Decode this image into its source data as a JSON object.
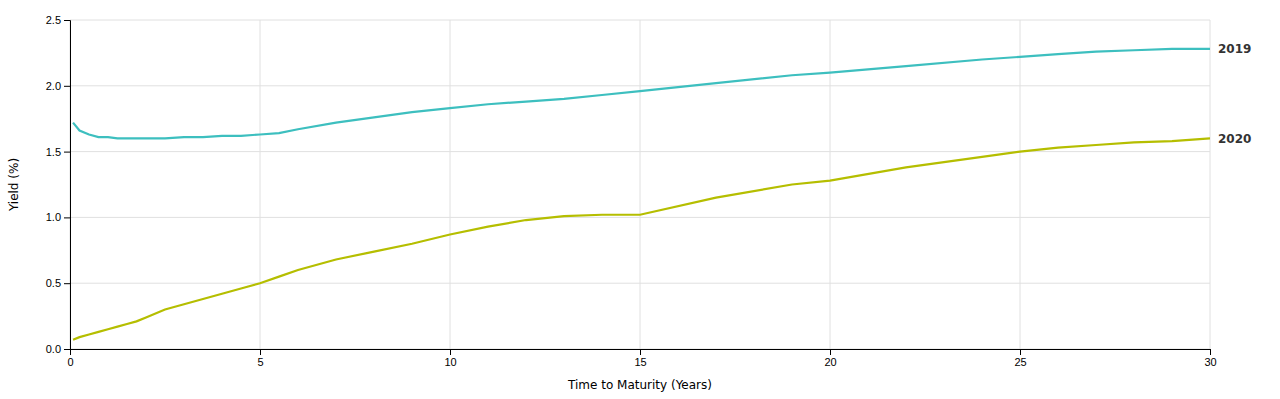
{
  "chart_data": {
    "type": "line",
    "x_label": "Time to Maturity (Years)",
    "y_label": "Yield (%)",
    "x": [
      0.08,
      0.25,
      0.5,
      0.75,
      1.0,
      1.25,
      1.5,
      1.75,
      2.0,
      2.5,
      3.0,
      3.5,
      4.0,
      4.5,
      5.0,
      5.5,
      6.0,
      7.0,
      8.0,
      9.0,
      10.0,
      11.0,
      12.0,
      13.0,
      14.0,
      15.0,
      17.0,
      19.0,
      20.0,
      22.0,
      24.0,
      25.0,
      26.0,
      27.0,
      28.0,
      29.0,
      30.0
    ],
    "series": [
      {
        "name": "2019",
        "color": "#3dbfbf",
        "values": [
          1.72,
          1.66,
          1.63,
          1.61,
          1.61,
          1.6,
          1.6,
          1.6,
          1.6,
          1.6,
          1.61,
          1.61,
          1.62,
          1.62,
          1.63,
          1.64,
          1.67,
          1.72,
          1.76,
          1.8,
          1.83,
          1.86,
          1.88,
          1.9,
          1.93,
          1.96,
          2.02,
          2.08,
          2.1,
          2.15,
          2.2,
          2.22,
          2.24,
          2.26,
          2.27,
          2.28,
          2.28
        ]
      },
      {
        "name": "2020",
        "color": "#b5be00",
        "values": [
          0.07,
          0.09,
          0.11,
          0.13,
          0.15,
          0.17,
          0.19,
          0.21,
          0.24,
          0.3,
          0.34,
          0.38,
          0.42,
          0.46,
          0.5,
          0.55,
          0.6,
          0.68,
          0.74,
          0.8,
          0.87,
          0.93,
          0.98,
          1.01,
          1.02,
          1.02,
          1.15,
          1.25,
          1.28,
          1.38,
          1.46,
          1.5,
          1.53,
          1.55,
          1.57,
          1.58,
          1.6
        ]
      }
    ],
    "xlim": [
      0,
      30
    ],
    "ylim": [
      0.0,
      2.5
    ],
    "xticks": [
      0,
      5,
      10,
      15,
      20,
      25,
      30
    ],
    "yticks": [
      {
        "value": 0.0,
        "label": "0.0"
      },
      0.5,
      {
        "value": 1.0,
        "label": "1.0"
      },
      1.5,
      {
        "value": 2.0,
        "label": "2.0"
      },
      2.5
    ],
    "grid": true
  }
}
